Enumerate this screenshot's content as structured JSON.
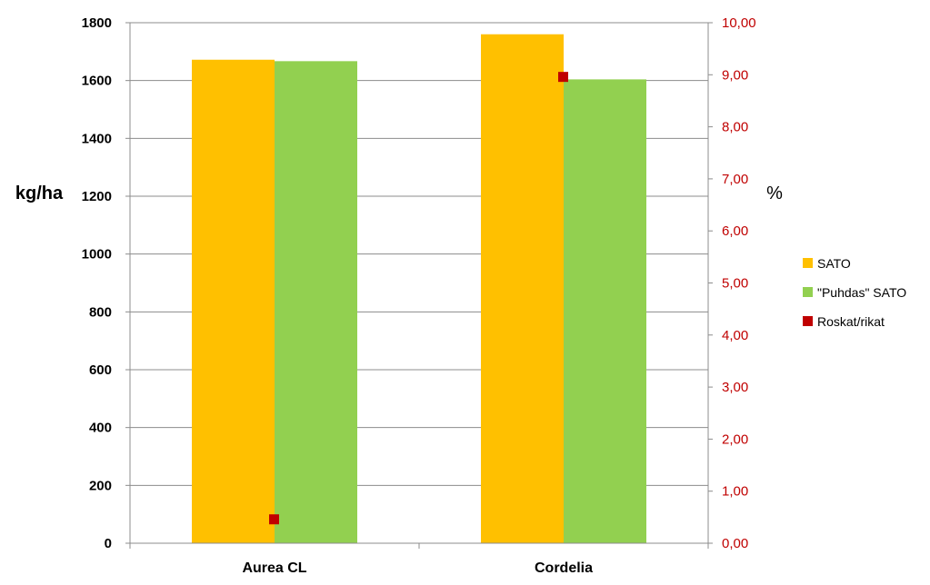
{
  "chart_data": {
    "type": "bar",
    "categories": [
      "Aurea CL",
      "Cordelia"
    ],
    "series": [
      {
        "name": "SATO",
        "axis": "left",
        "kind": "bar",
        "color": "#ffc000",
        "values": [
          1672,
          1760
        ]
      },
      {
        "name": "\"Puhdas\" SATO",
        "axis": "left",
        "kind": "bar",
        "color": "#92d050",
        "values": [
          1667,
          1604
        ]
      },
      {
        "name": "Roskat/rikat",
        "axis": "right",
        "kind": "marker",
        "color": "#c00000",
        "values": [
          0.45,
          8.95
        ]
      }
    ],
    "ylabel": "kg/ha",
    "y2label": "%",
    "ylim": [
      0,
      1800
    ],
    "y2lim": [
      0,
      10
    ],
    "yticks": [
      "0",
      "200",
      "400",
      "600",
      "800",
      "1000",
      "1200",
      "1400",
      "1600",
      "1800"
    ],
    "y2ticks": [
      "0,00",
      "1,00",
      "2,00",
      "3,00",
      "4,00",
      "5,00",
      "6,00",
      "7,00",
      "8,00",
      "9,00",
      "10,00"
    ],
    "grid": true,
    "legend": "right"
  }
}
